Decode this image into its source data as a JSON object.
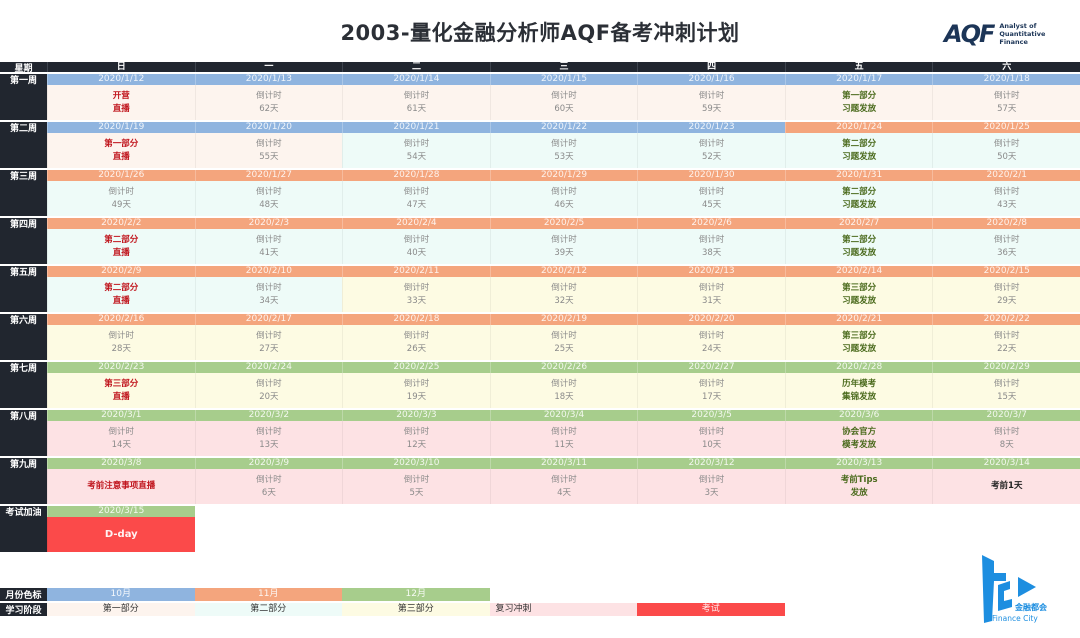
{
  "title": "2003-量化金融分析师AQF备考冲刺计划",
  "logo_aqf": {
    "mark": "AQF",
    "line1": "Analyst of",
    "line2": "Quantitative Finance"
  },
  "logo_fc": {
    "cn": "金融都会",
    "en": "Finance City"
  },
  "header": {
    "label": "星期",
    "days": [
      "日",
      "一",
      "二",
      "三",
      "四",
      "五",
      "六"
    ]
  },
  "colors": {
    "month10": "#8fb4df",
    "month11": "#f4a57d",
    "month12": "#a7cd8c",
    "part1": "#fdf4ee",
    "part2": "#eefbf8",
    "part3": "#fdfbe3",
    "review": "#fde2e4",
    "exam": "#fb4a4a"
  },
  "weeks": [
    {
      "label": "第一周",
      "days": [
        {
          "date": "2020/1/12",
          "bar": "blue",
          "bg": "p1",
          "l1": "开营",
          "l2": "直播",
          "kind": "live"
        },
        {
          "date": "2020/1/13",
          "bar": "blue",
          "bg": "p1",
          "l1": "倒计时",
          "l2": "62天",
          "kind": "cd"
        },
        {
          "date": "2020/1/14",
          "bar": "blue",
          "bg": "p1",
          "l1": "倒计时",
          "l2": "61天",
          "kind": "cd"
        },
        {
          "date": "2020/1/15",
          "bar": "blue",
          "bg": "p1",
          "l1": "倒计时",
          "l2": "60天",
          "kind": "cd"
        },
        {
          "date": "2020/1/16",
          "bar": "blue",
          "bg": "p1",
          "l1": "倒计时",
          "l2": "59天",
          "kind": "cd"
        },
        {
          "date": "2020/1/17",
          "bar": "blue",
          "bg": "p1",
          "l1": "第一部分",
          "l2": "习题发放",
          "kind": "rel"
        },
        {
          "date": "2020/1/18",
          "bar": "blue",
          "bg": "p1",
          "l1": "倒计时",
          "l2": "57天",
          "kind": "cd"
        }
      ]
    },
    {
      "label": "第二周",
      "days": [
        {
          "date": "2020/1/19",
          "bar": "blue",
          "bg": "p1",
          "l1": "第一部分",
          "l2": "直播",
          "kind": "live"
        },
        {
          "date": "2020/1/20",
          "bar": "blue",
          "bg": "p1",
          "l1": "倒计时",
          "l2": "55天",
          "kind": "cd"
        },
        {
          "date": "2020/1/21",
          "bar": "blue",
          "bg": "p2",
          "l1": "倒计时",
          "l2": "54天",
          "kind": "cd"
        },
        {
          "date": "2020/1/22",
          "bar": "blue",
          "bg": "p2",
          "l1": "倒计时",
          "l2": "53天",
          "kind": "cd"
        },
        {
          "date": "2020/1/23",
          "bar": "blue",
          "bg": "p2",
          "l1": "倒计时",
          "l2": "52天",
          "kind": "cd"
        },
        {
          "date": "2020/1/24",
          "bar": "orange",
          "bg": "p2",
          "l1": "第二部分",
          "l2": "习题发放",
          "kind": "rel"
        },
        {
          "date": "2020/1/25",
          "bar": "orange",
          "bg": "p2",
          "l1": "倒计时",
          "l2": "50天",
          "kind": "cd"
        }
      ]
    },
    {
      "label": "第三周",
      "days": [
        {
          "date": "2020/1/26",
          "bar": "orange",
          "bg": "p2",
          "l1": "倒计时",
          "l2": "49天",
          "kind": "cd"
        },
        {
          "date": "2020/1/27",
          "bar": "orange",
          "bg": "p2",
          "l1": "倒计时",
          "l2": "48天",
          "kind": "cd"
        },
        {
          "date": "2020/1/28",
          "bar": "orange",
          "bg": "p2",
          "l1": "倒计时",
          "l2": "47天",
          "kind": "cd"
        },
        {
          "date": "2020/1/29",
          "bar": "orange",
          "bg": "p2",
          "l1": "倒计时",
          "l2": "46天",
          "kind": "cd"
        },
        {
          "date": "2020/1/30",
          "bar": "orange",
          "bg": "p2",
          "l1": "倒计时",
          "l2": "45天",
          "kind": "cd"
        },
        {
          "date": "2020/1/31",
          "bar": "orange",
          "bg": "p2",
          "l1": "第二部分",
          "l2": "习题发放",
          "kind": "rel"
        },
        {
          "date": "2020/2/1",
          "bar": "orange",
          "bg": "p2",
          "l1": "倒计时",
          "l2": "43天",
          "kind": "cd"
        }
      ]
    },
    {
      "label": "第四周",
      "days": [
        {
          "date": "2020/2/2",
          "bar": "orange",
          "bg": "p2",
          "l1": "第二部分",
          "l2": "直播",
          "kind": "live"
        },
        {
          "date": "2020/2/3",
          "bar": "orange",
          "bg": "p2",
          "l1": "倒计时",
          "l2": "41天",
          "kind": "cd"
        },
        {
          "date": "2020/2/4",
          "bar": "orange",
          "bg": "p2",
          "l1": "倒计时",
          "l2": "40天",
          "kind": "cd"
        },
        {
          "date": "2020/2/5",
          "bar": "orange",
          "bg": "p2",
          "l1": "倒计时",
          "l2": "39天",
          "kind": "cd"
        },
        {
          "date": "2020/2/6",
          "bar": "orange",
          "bg": "p2",
          "l1": "倒计时",
          "l2": "38天",
          "kind": "cd"
        },
        {
          "date": "2020/2/7",
          "bar": "orange",
          "bg": "p2",
          "l1": "第二部分",
          "l2": "习题发放",
          "kind": "rel"
        },
        {
          "date": "2020/2/8",
          "bar": "orange",
          "bg": "p2",
          "l1": "倒计时",
          "l2": "36天",
          "kind": "cd"
        }
      ]
    },
    {
      "label": "第五周",
      "days": [
        {
          "date": "2020/2/9",
          "bar": "orange",
          "bg": "p2",
          "l1": "第二部分",
          "l2": "直播",
          "kind": "live"
        },
        {
          "date": "2020/2/10",
          "bar": "orange",
          "bg": "p2",
          "l1": "倒计时",
          "l2": "34天",
          "kind": "cd"
        },
        {
          "date": "2020/2/11",
          "bar": "orange",
          "bg": "p3",
          "l1": "倒计时",
          "l2": "33天",
          "kind": "cd"
        },
        {
          "date": "2020/2/12",
          "bar": "orange",
          "bg": "p3",
          "l1": "倒计时",
          "l2": "32天",
          "kind": "cd"
        },
        {
          "date": "2020/2/13",
          "bar": "orange",
          "bg": "p3",
          "l1": "倒计时",
          "l2": "31天",
          "kind": "cd"
        },
        {
          "date": "2020/2/14",
          "bar": "orange",
          "bg": "p3",
          "l1": "第三部分",
          "l2": "习题发放",
          "kind": "rel"
        },
        {
          "date": "2020/2/15",
          "bar": "orange",
          "bg": "p3",
          "l1": "倒计时",
          "l2": "29天",
          "kind": "cd"
        }
      ]
    },
    {
      "label": "第六周",
      "days": [
        {
          "date": "2020/2/16",
          "bar": "orange",
          "bg": "p3",
          "l1": "倒计时",
          "l2": "28天",
          "kind": "cd"
        },
        {
          "date": "2020/2/17",
          "bar": "orange",
          "bg": "p3",
          "l1": "倒计时",
          "l2": "27天",
          "kind": "cd"
        },
        {
          "date": "2020/2/18",
          "bar": "orange",
          "bg": "p3",
          "l1": "倒计时",
          "l2": "26天",
          "kind": "cd"
        },
        {
          "date": "2020/2/19",
          "bar": "orange",
          "bg": "p3",
          "l1": "倒计时",
          "l2": "25天",
          "kind": "cd"
        },
        {
          "date": "2020/2/20",
          "bar": "orange",
          "bg": "p3",
          "l1": "倒计时",
          "l2": "24天",
          "kind": "cd"
        },
        {
          "date": "2020/2/21",
          "bar": "orange",
          "bg": "p3",
          "l1": "第三部分",
          "l2": "习题发放",
          "kind": "rel"
        },
        {
          "date": "2020/2/22",
          "bar": "orange",
          "bg": "p3",
          "l1": "倒计时",
          "l2": "22天",
          "kind": "cd"
        }
      ]
    },
    {
      "label": "第七周",
      "days": [
        {
          "date": "2020/2/23",
          "bar": "green",
          "bg": "p3",
          "l1": "第三部分",
          "l2": "直播",
          "kind": "live"
        },
        {
          "date": "2020/2/24",
          "bar": "green",
          "bg": "p3",
          "l1": "倒计时",
          "l2": "20天",
          "kind": "cd"
        },
        {
          "date": "2020/2/25",
          "bar": "green",
          "bg": "p3",
          "l1": "倒计时",
          "l2": "19天",
          "kind": "cd"
        },
        {
          "date": "2020/2/26",
          "bar": "green",
          "bg": "p3",
          "l1": "倒计时",
          "l2": "18天",
          "kind": "cd"
        },
        {
          "date": "2020/2/27",
          "bar": "green",
          "bg": "p3",
          "l1": "倒计时",
          "l2": "17天",
          "kind": "cd"
        },
        {
          "date": "2020/2/28",
          "bar": "green",
          "bg": "p3",
          "l1": "历年模考",
          "l2": "集锦发放",
          "kind": "rel"
        },
        {
          "date": "2020/2/29",
          "bar": "green",
          "bg": "p3",
          "l1": "倒计时",
          "l2": "15天",
          "kind": "cd"
        }
      ]
    },
    {
      "label": "第八周",
      "days": [
        {
          "date": "2020/3/1",
          "bar": "green",
          "bg": "rev",
          "l1": "倒计时",
          "l2": "14天",
          "kind": "cd"
        },
        {
          "date": "2020/3/2",
          "bar": "green",
          "bg": "rev",
          "l1": "倒计时",
          "l2": "13天",
          "kind": "cd"
        },
        {
          "date": "2020/3/3",
          "bar": "green",
          "bg": "rev",
          "l1": "倒计时",
          "l2": "12天",
          "kind": "cd"
        },
        {
          "date": "2020/3/4",
          "bar": "green",
          "bg": "rev",
          "l1": "倒计时",
          "l2": "11天",
          "kind": "cd"
        },
        {
          "date": "2020/3/5",
          "bar": "green",
          "bg": "rev",
          "l1": "倒计时",
          "l2": "10天",
          "kind": "cd"
        },
        {
          "date": "2020/3/6",
          "bar": "green",
          "bg": "rev",
          "l1": "协会官方",
          "l2": "模考发放",
          "kind": "rel"
        },
        {
          "date": "2020/3/7",
          "bar": "green",
          "bg": "rev",
          "l1": "倒计时",
          "l2": "8天",
          "kind": "cd"
        }
      ]
    },
    {
      "label": "第九周",
      "days": [
        {
          "date": "2020/3/8",
          "bar": "green",
          "bg": "rev",
          "l1": "考前注意事项直播",
          "l2": "",
          "kind": "live"
        },
        {
          "date": "2020/3/9",
          "bar": "green",
          "bg": "rev",
          "l1": "倒计时",
          "l2": "6天",
          "kind": "cd"
        },
        {
          "date": "2020/3/10",
          "bar": "green",
          "bg": "rev",
          "l1": "倒计时",
          "l2": "5天",
          "kind": "cd"
        },
        {
          "date": "2020/3/11",
          "bar": "green",
          "bg": "rev",
          "l1": "倒计时",
          "l2": "4天",
          "kind": "cd"
        },
        {
          "date": "2020/3/12",
          "bar": "green",
          "bg": "rev",
          "l1": "倒计时",
          "l2": "3天",
          "kind": "cd"
        },
        {
          "date": "2020/3/13",
          "bar": "green",
          "bg": "rev",
          "l1": "考前Tips",
          "l2": "发放",
          "kind": "rel"
        },
        {
          "date": "2020/3/14",
          "bar": "green",
          "bg": "rev",
          "l1": "考前1天",
          "l2": "",
          "kind": "dark"
        }
      ]
    }
  ],
  "exam_week": {
    "label": "考试加油",
    "date": "2020/3/15",
    "text": "D-day"
  },
  "legend": {
    "month_label": "月份色标",
    "months": [
      "10月",
      "11月",
      "12月"
    ],
    "stage_label": "学习阶段",
    "stages": [
      "第一部分",
      "第二部分",
      "第三部分",
      "复习冲刺",
      "考试"
    ]
  }
}
